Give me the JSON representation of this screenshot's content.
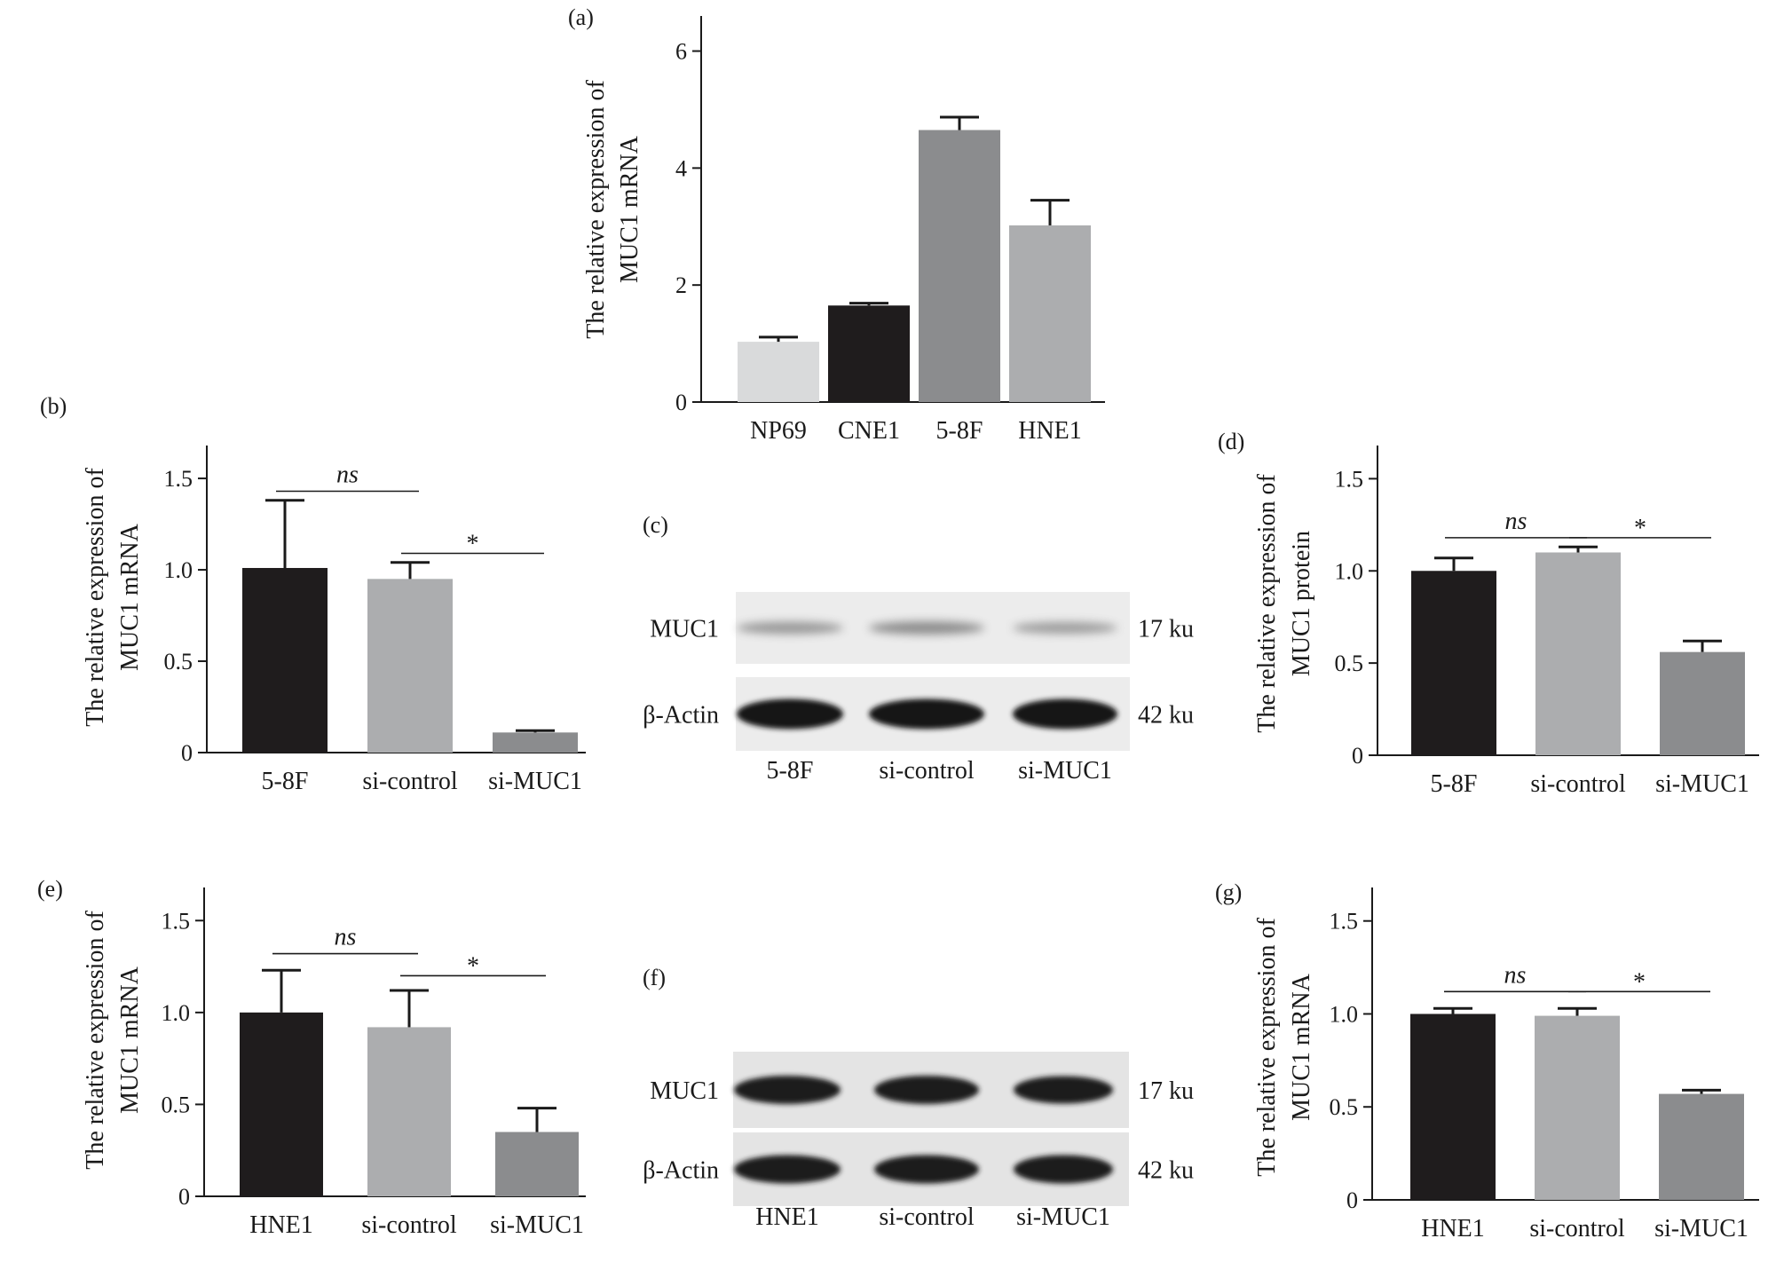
{
  "chart_data": [
    {
      "id": "a",
      "type": "bar",
      "panel_label": "(a)",
      "ylabel": [
        "The relative expression of",
        "MUC1 mRNA"
      ],
      "ylim": [
        0,
        6.6
      ],
      "yticks": [
        0,
        2,
        4,
        6
      ],
      "ytick_labels": [
        "0",
        "2",
        "4",
        "6"
      ],
      "categories": [
        "NP69",
        "CNE1",
        "5-8F",
        "HNE1"
      ],
      "values": [
        1.03,
        1.65,
        4.65,
        3.02
      ],
      "errors": [
        0.08,
        0.04,
        0.22,
        0.43
      ],
      "colors": [
        "#d9dadb",
        "#1f1c1d",
        "#8b8c8e",
        "#acadaf"
      ],
      "significance": []
    },
    {
      "id": "b",
      "type": "bar",
      "panel_label": "(b)",
      "ylabel": [
        "The relative expression of",
        "MUC1 mRNA"
      ],
      "ylim": [
        0,
        1.68
      ],
      "yticks": [
        0,
        0.5,
        1.0,
        1.5
      ],
      "ytick_labels": [
        "0",
        "0.5",
        "1.0",
        "1.5"
      ],
      "categories": [
        "5-8F",
        "si-control",
        "si-MUC1"
      ],
      "values": [
        1.01,
        0.95,
        0.11
      ],
      "errors": [
        0.37,
        0.09,
        0.01
      ],
      "colors": [
        "#1f1c1d",
        "#acadaf",
        "#8b8c8e"
      ],
      "significance": [
        {
          "from": 0,
          "to": 1,
          "label": "ns",
          "y": 1.43
        },
        {
          "from": 1,
          "to": 2,
          "label": "*",
          "y": 1.09
        }
      ]
    },
    {
      "id": "d",
      "type": "bar",
      "panel_label": "(d)",
      "ylabel": [
        "The relative expression of",
        "MUC1 protein"
      ],
      "ylim": [
        0,
        1.68
      ],
      "yticks": [
        0,
        0.5,
        1.0,
        1.5
      ],
      "ytick_labels": [
        "0",
        "0.5",
        "1.0",
        "1.5"
      ],
      "categories": [
        "5-8F",
        "si-control",
        "si-MUC1"
      ],
      "values": [
        1.0,
        1.1,
        0.56
      ],
      "errors": [
        0.07,
        0.03,
        0.06
      ],
      "colors": [
        "#1f1c1d",
        "#acadaf",
        "#8b8c8e"
      ],
      "significance": [
        {
          "from": 0,
          "to": 1,
          "label": "ns",
          "y": 1.18
        },
        {
          "from": 1,
          "to": 2,
          "label": "*",
          "y": 1.18
        }
      ]
    },
    {
      "id": "e",
      "type": "bar",
      "panel_label": "(e)",
      "ylabel": [
        "The relative expression of",
        "MUC1 mRNA"
      ],
      "ylim": [
        0,
        1.68
      ],
      "yticks": [
        0,
        0.5,
        1.0,
        1.5
      ],
      "ytick_labels": [
        "0",
        "0.5",
        "1.0",
        "1.5"
      ],
      "categories": [
        "HNE1",
        "si-control",
        "si-MUC1"
      ],
      "values": [
        1.0,
        0.92,
        0.35
      ],
      "errors": [
        0.23,
        0.2,
        0.13
      ],
      "colors": [
        "#1f1c1d",
        "#acadaf",
        "#8b8c8e"
      ],
      "significance": [
        {
          "from": 0,
          "to": 1,
          "label": "ns",
          "y": 1.32
        },
        {
          "from": 1,
          "to": 2,
          "label": "*",
          "y": 1.2
        }
      ]
    },
    {
      "id": "g",
      "type": "bar",
      "panel_label": "(g)",
      "ylabel": [
        "The relative expression of",
        "MUC1 mRNA"
      ],
      "ylim": [
        0,
        1.68
      ],
      "yticks": [
        0,
        0.5,
        1.0,
        1.5
      ],
      "ytick_labels": [
        "0",
        "0.5",
        "1.0",
        "1.5"
      ],
      "categories": [
        "HNE1",
        "si-control",
        "si-MUC1"
      ],
      "values": [
        1.0,
        0.99,
        0.57
      ],
      "errors": [
        0.03,
        0.04,
        0.02
      ],
      "colors": [
        "#1f1c1d",
        "#acadaf",
        "#8b8c8e"
      ],
      "significance": [
        {
          "from": 0,
          "to": 1,
          "label": "ns",
          "y": 1.12
        },
        {
          "from": 1,
          "to": 2,
          "label": "*",
          "y": 1.12
        }
      ]
    }
  ],
  "blots": [
    {
      "id": "c",
      "panel_label": "(c)",
      "rows": [
        {
          "label": "MUC1",
          "size": "17 ku",
          "style": "light",
          "intensity": [
            0.55,
            0.75,
            0.45
          ]
        },
        {
          "label": "β-Actin",
          "size": "42 ku",
          "style": "light",
          "intensity": [
            1.0,
            1.0,
            1.0
          ]
        }
      ],
      "lanes": [
        "5-8F",
        "si-control",
        "si-MUC1"
      ]
    },
    {
      "id": "f",
      "panel_label": "(f)",
      "rows": [
        {
          "label": "MUC1",
          "size": "17 ku",
          "style": "dark",
          "intensity": [
            1.0,
            1.0,
            0.9
          ]
        },
        {
          "label": "β-Actin",
          "size": "42 ku",
          "style": "dark",
          "intensity": [
            1.0,
            1.0,
            1.0
          ]
        }
      ],
      "lanes": [
        "HNE1",
        "si-control",
        "si-MUC1"
      ]
    }
  ]
}
